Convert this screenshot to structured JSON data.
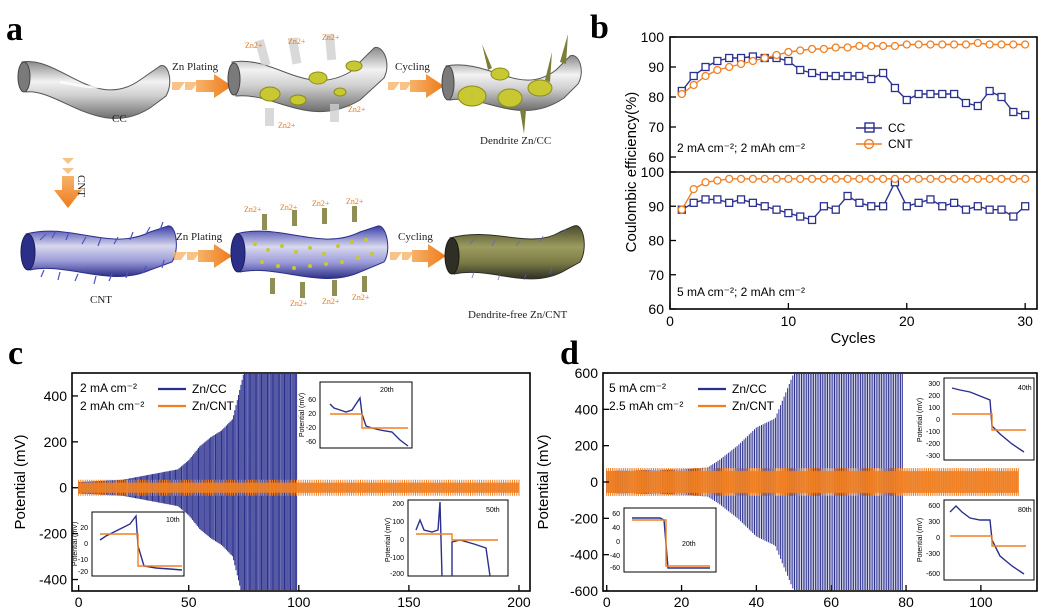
{
  "panels": {
    "a": {
      "label": "a"
    },
    "b": {
      "label": "b"
    },
    "c": {
      "label": "c"
    },
    "d": {
      "label": "d"
    }
  },
  "schematic": {
    "arrows": {
      "zn_plating_top": "Zn Plating",
      "cycling_top": "Cycling",
      "cnt_down": "CNT",
      "zn_plating_bottom": "Zn Plating",
      "cycling_bottom": "Cycling"
    },
    "captions": {
      "cc": "CC",
      "dendrite_zn_cc": "Dendrite Zn/CC",
      "cnt": "CNT",
      "dendrite_free": "Dendrite-free Zn/CNT"
    },
    "ion_label": "Zn2+",
    "colors": {
      "arrow": "#f07f22",
      "substrate": "#b9b9b9",
      "cnt": "#5a5fd1",
      "zinc": "#c8c832"
    }
  },
  "panel_b": {
    "ylabel": "Coulombic efficiency(%)",
    "xlabel": "Cycles",
    "legend": {
      "cc": "CC",
      "cnt": "CNT"
    },
    "colors": {
      "cc": "#2b2f8e",
      "cnt": "#f07f22"
    }
  },
  "panel_c": {
    "ylabel": "Potential (mV)",
    "anno": [
      "2 mA cm⁻²",
      "2 mAh cm⁻²"
    ],
    "legend": {
      "cc": "Zn/CC",
      "cnt": "Zn/CNT"
    },
    "insets": {
      "top_right": "20th",
      "bottom_left": "10th",
      "bottom_right": "50th",
      "ylabel": "Potential (mV)"
    }
  },
  "panel_d": {
    "ylabel": "Potential (mV)",
    "anno": [
      "5 mA cm⁻²",
      "2.5 mAh cm⁻²"
    ],
    "legend": {
      "cc": "Zn/CC",
      "cnt": "Zn/CNT"
    },
    "insets": {
      "top_right": "40th",
      "bottom_left": "20th",
      "bottom_right": "80th",
      "ylabel": "Potential (mV)"
    }
  },
  "chart_data": [
    {
      "panel": "b-top",
      "type": "line",
      "title": "",
      "xlabel": "",
      "ylabel": "Coulombic efficiency(%)",
      "annotation": "2 mA cm⁻²; 2 mAh cm⁻²",
      "xlim": [
        0,
        31
      ],
      "ylim": [
        55,
        100
      ],
      "yticks": [
        60,
        70,
        80,
        90,
        100
      ],
      "x": [
        1,
        2,
        3,
        4,
        5,
        6,
        7,
        8,
        9,
        10,
        11,
        12,
        13,
        14,
        15,
        16,
        17,
        18,
        19,
        20,
        21,
        22,
        23,
        24,
        25,
        26,
        27,
        28,
        29,
        30
      ],
      "series": [
        {
          "name": "CC",
          "values": [
            82,
            87,
            90,
            92,
            93,
            93,
            93.5,
            93,
            93,
            92,
            89,
            88,
            87,
            87,
            87,
            87,
            86,
            88,
            83,
            79,
            81,
            81,
            81,
            81,
            78,
            77,
            82,
            80,
            75,
            74
          ]
        },
        {
          "name": "CNT",
          "values": [
            81,
            84,
            87,
            89,
            90,
            91,
            92,
            93,
            94,
            95,
            95.5,
            96,
            96,
            96.5,
            96.5,
            97,
            97,
            97,
            97,
            97.5,
            97.5,
            97.5,
            97.5,
            97.5,
            97.5,
            98,
            97.5,
            97.5,
            97.5,
            97.5
          ]
        }
      ],
      "legend": "center-right"
    },
    {
      "panel": "b-bottom",
      "type": "line",
      "title": "",
      "xlabel": "Cycles",
      "ylabel": "",
      "annotation": "5 mA cm⁻²; 2 mAh cm⁻²",
      "xlim": [
        0,
        31
      ],
      "ylim": [
        60,
        100
      ],
      "xticks": [
        0,
        10,
        20,
        30
      ],
      "yticks": [
        60,
        70,
        80,
        90,
        100
      ],
      "x": [
        1,
        2,
        3,
        4,
        5,
        6,
        7,
        8,
        9,
        10,
        11,
        12,
        13,
        14,
        15,
        16,
        17,
        18,
        19,
        20,
        21,
        22,
        23,
        24,
        25,
        26,
        27,
        28,
        29,
        30
      ],
      "series": [
        {
          "name": "CC",
          "values": [
            89,
            91,
            92,
            92,
            91,
            92,
            91,
            90,
            89,
            88,
            87,
            86,
            90,
            89,
            93,
            91,
            90,
            90,
            97,
            90,
            91,
            92,
            90,
            91,
            89,
            90,
            89,
            89,
            87,
            90
          ]
        },
        {
          "name": "CNT",
          "values": [
            89,
            95,
            97,
            97.5,
            98,
            98,
            98,
            98,
            98,
            98,
            98,
            98,
            98,
            98,
            98,
            98,
            98,
            98,
            98,
            98,
            98,
            98,
            98,
            98,
            98,
            98,
            98,
            98,
            98,
            98
          ]
        }
      ]
    },
    {
      "panel": "c",
      "type": "line",
      "title": "",
      "xlabel": "",
      "ylabel": "Potential (mV)",
      "xlim": [
        -3,
        205
      ],
      "ylim": [
        -450,
        500
      ],
      "xticks": [
        0,
        50,
        100,
        150,
        200
      ],
      "yticks": [
        -400,
        -200,
        0,
        200,
        400
      ],
      "series": [
        {
          "name": "Zn/CC",
          "envelope_x": [
            0,
            20,
            45,
            50,
            55,
            60,
            65,
            70,
            75,
            80,
            90,
            99,
            100
          ],
          "envelope_mV": [
            25,
            35,
            80,
            120,
            180,
            220,
            250,
            300,
            500,
            500,
            500,
            500,
            0
          ]
        },
        {
          "name": "Zn/CNT",
          "envelope_x": [
            0,
            200
          ],
          "envelope_mV": [
            22,
            22
          ]
        }
      ],
      "legend": "top-center"
    },
    {
      "panel": "d",
      "type": "line",
      "title": "",
      "xlabel": "",
      "ylabel": "Potential (mV)",
      "xlim": [
        -1,
        115
      ],
      "ylim": [
        -600,
        600
      ],
      "xticks": [
        0,
        20,
        40,
        60,
        80,
        100
      ],
      "yticks": [
        -600,
        -400,
        -200,
        0,
        200,
        400,
        600
      ],
      "series": [
        {
          "name": "Zn/CC",
          "envelope_x": [
            0,
            20,
            27,
            30,
            35,
            40,
            45,
            50,
            60,
            70,
            79,
            80
          ],
          "envelope_mV": [
            60,
            70,
            80,
            120,
            200,
            300,
            350,
            600,
            600,
            600,
            600,
            0
          ]
        },
        {
          "name": "Zn/CNT",
          "envelope_x": [
            0,
            110
          ],
          "envelope_mV": [
            60,
            60
          ]
        }
      ],
      "legend": "top-center"
    }
  ]
}
